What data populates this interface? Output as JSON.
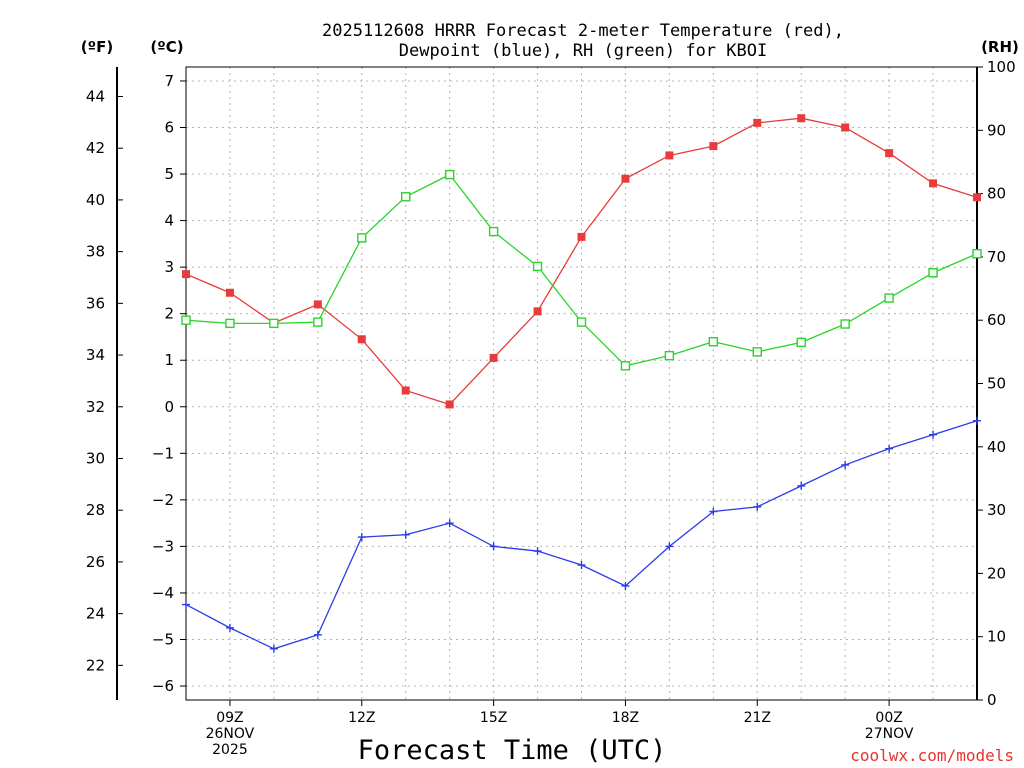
{
  "chart_data": {
    "type": "line",
    "title_line1": "2025112608 HRRR Forecast 2-meter Temperature (red),",
    "title_line2": "Dewpoint (blue), RH (green) for KBOI",
    "xlabel": "Forecast Time (UTC)",
    "credit": "coolwx.com/models",
    "credit_color": "#e8332f",
    "left_unit_f": "(ºF)",
    "left_unit_c": "(ºC)",
    "right_unit": "(RH)",
    "celsius_ylim": [
      -6.3,
      7.3
    ],
    "rh_ylim": [
      0,
      100
    ],
    "x_hours": [
      8,
      9,
      10,
      11,
      12,
      13,
      14,
      15,
      16,
      17,
      18,
      19,
      20,
      21,
      22,
      23,
      24,
      25,
      26
    ],
    "celsius_ticks": [
      "-6",
      "-5",
      "-4",
      "-3",
      "-2",
      "-1",
      "0",
      "1",
      "2",
      "3",
      "4",
      "5",
      "6",
      "7"
    ],
    "fahrenheit_ticks": [
      "22",
      "24",
      "26",
      "28",
      "30",
      "32",
      "34",
      "36",
      "38",
      "40",
      "42",
      "44"
    ],
    "rh_ticks": [
      "0",
      "10",
      "20",
      "30",
      "40",
      "50",
      "60",
      "70",
      "80",
      "90",
      "100"
    ],
    "x_ticks": [
      {
        "hour": 9,
        "lines": [
          "09Z",
          "26NOV",
          "2025"
        ]
      },
      {
        "hour": 12,
        "lines": [
          "12Z"
        ]
      },
      {
        "hour": 15,
        "lines": [
          "15Z"
        ]
      },
      {
        "hour": 18,
        "lines": [
          "18Z"
        ]
      },
      {
        "hour": 21,
        "lines": [
          "21Z"
        ]
      },
      {
        "hour": 24,
        "lines": [
          "00Z",
          "27NOV"
        ]
      }
    ],
    "series": [
      {
        "name": "Temperature",
        "axis": "celsius",
        "color": "#e83c3c",
        "marker": "filled-square",
        "values": [
          2.85,
          2.45,
          1.8,
          2.2,
          1.45,
          0.35,
          0.05,
          1.05,
          2.05,
          3.65,
          4.9,
          5.4,
          5.6,
          6.1,
          6.2,
          6.0,
          5.45,
          4.8,
          4.5
        ]
      },
      {
        "name": "Dewpoint",
        "axis": "celsius",
        "color": "#2a3ce8",
        "marker": "plus",
        "values": [
          -4.25,
          -4.75,
          -5.2,
          -4.9,
          -2.8,
          -2.75,
          -2.5,
          -3.0,
          -3.1,
          -3.4,
          -3.85,
          -3.0,
          -2.25,
          -2.15,
          -1.7,
          -1.25,
          -0.9,
          -0.6,
          -0.3
        ]
      },
      {
        "name": "RH",
        "axis": "rh",
        "color": "#2ad42a",
        "marker": "open-square",
        "values": [
          60,
          59.5,
          59.5,
          59.7,
          73,
          79.5,
          83,
          74,
          68.5,
          59.7,
          52.8,
          54.4,
          56.6,
          55,
          56.5,
          59.4,
          63.5,
          67.5,
          70.5
        ]
      }
    ]
  }
}
